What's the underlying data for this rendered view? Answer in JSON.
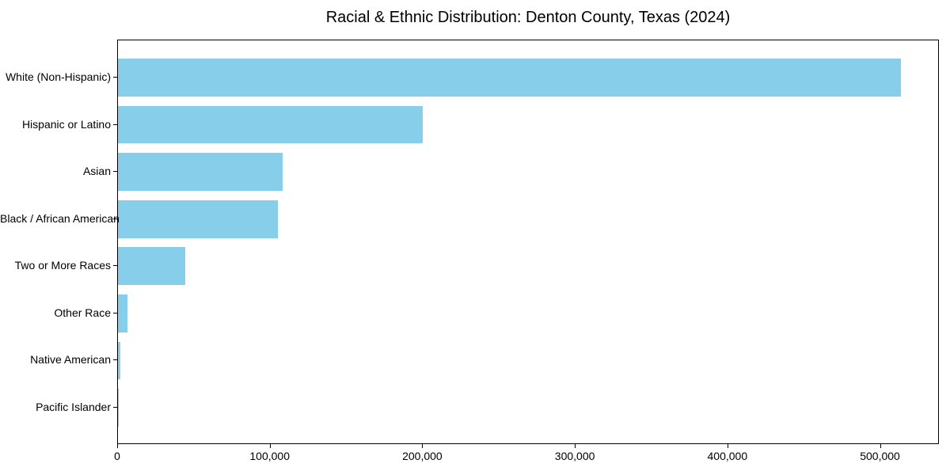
{
  "chart_data": {
    "type": "bar",
    "orientation": "horizontal",
    "title": "Racial & Ethnic Distribution: Denton County, Texas (2024)",
    "categories": [
      "White (Non-Hispanic)",
      "Hispanic or Latino",
      "Asian",
      "Black / African American",
      "Two or More Races",
      "Other Race",
      "Native American",
      "Pacific Islander"
    ],
    "values": [
      513000,
      200000,
      108000,
      105000,
      44300,
      6000,
      1600,
      600
    ],
    "xlabel": "",
    "ylabel": "",
    "xlim": [
      0,
      538650
    ],
    "x_ticks": [
      0,
      100000,
      200000,
      300000,
      400000,
      500000
    ],
    "x_tick_labels": [
      "0",
      "100,000",
      "200,000",
      "300,000",
      "400,000",
      "500,000"
    ],
    "bar_color": "#87CEEB",
    "grid": false,
    "legend": null
  }
}
